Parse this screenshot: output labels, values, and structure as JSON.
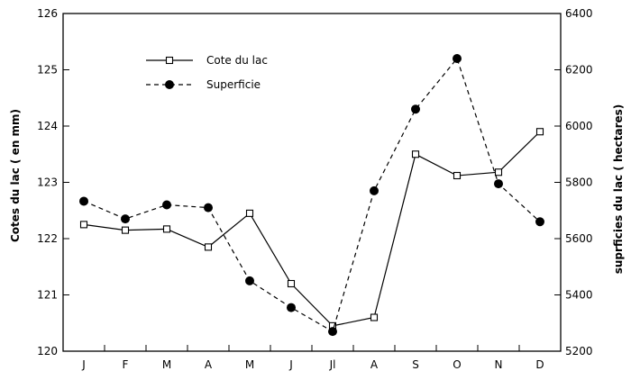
{
  "chart_data": {
    "type": "line",
    "categories": [
      "J",
      "F",
      "M",
      "A",
      "M",
      "J",
      "Jl",
      "A",
      "S",
      "O",
      "N",
      "D"
    ],
    "left_axis": {
      "label": "Cotes du lac  ( en mm)",
      "range": [
        120,
        126
      ],
      "ticks": [
        "120",
        "121",
        "122",
        "123",
        "124",
        "125",
        "126"
      ]
    },
    "right_axis": {
      "label": "suprficies du lac  ( hectares)",
      "range": [
        5200,
        6400
      ],
      "ticks": [
        "5200",
        "5400",
        "5600",
        "5800",
        "6000",
        "6200",
        "6400"
      ]
    },
    "series": [
      {
        "name": "Cote du lac",
        "axis": "left",
        "marker": "open-square",
        "line": "solid",
        "values": [
          122.25,
          122.15,
          122.17,
          121.85,
          122.45,
          121.2,
          120.45,
          120.6,
          123.5,
          123.12,
          123.18,
          123.9
        ]
      },
      {
        "name": "Superficie",
        "axis": "right",
        "marker": "filled-circle",
        "line": "dashed",
        "values": [
          5733,
          5670,
          5720,
          5710,
          5450,
          5355,
          5270,
          5770,
          6060,
          6240,
          5795,
          5660
        ]
      }
    ],
    "legend_position": "top-left",
    "grid": false
  }
}
